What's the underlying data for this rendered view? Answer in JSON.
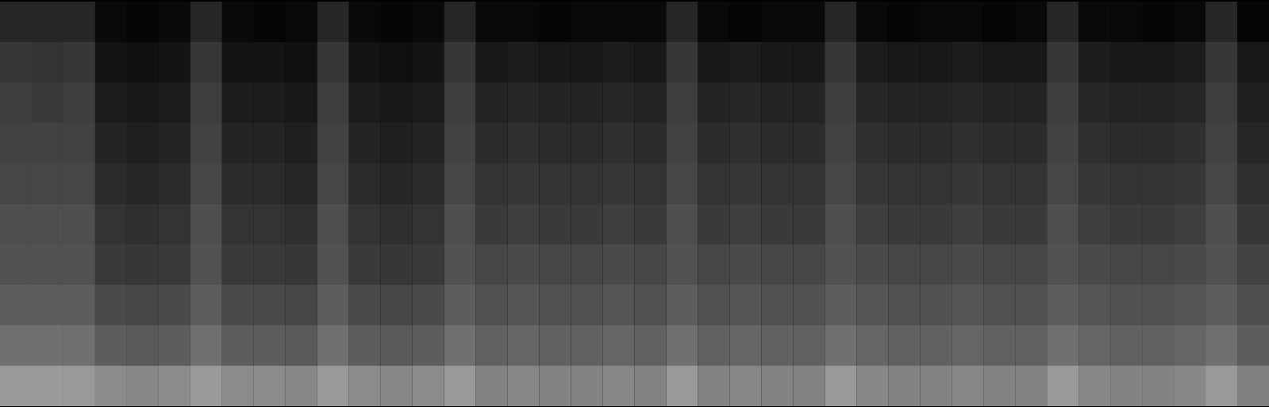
{
  "chart_data": {
    "type": "heatmap",
    "tick_labels": false,
    "cells": [
      [
        14,
        14,
        14,
        6,
        5,
        6,
        14,
        6,
        5,
        6,
        14,
        6,
        5,
        6,
        14,
        6,
        6,
        5,
        6,
        6,
        6,
        14,
        6,
        5,
        6,
        6,
        14,
        6,
        5,
        6,
        6,
        5,
        6,
        14,
        6,
        6,
        5,
        6,
        14,
        5
      ],
      [
        18,
        17,
        18,
        9,
        8,
        9,
        18,
        9,
        9,
        8,
        18,
        9,
        8,
        9,
        18,
        10,
        11,
        10,
        10,
        11,
        10,
        18,
        10,
        11,
        10,
        10,
        18,
        11,
        10,
        10,
        11,
        10,
        10,
        18,
        11,
        10,
        10,
        11,
        18,
        10
      ],
      [
        20,
        19,
        20,
        11,
        10,
        11,
        20,
        11,
        11,
        10,
        20,
        11,
        10,
        11,
        20,
        13,
        14,
        13,
        13,
        14,
        13,
        20,
        13,
        14,
        13,
        13,
        20,
        14,
        13,
        13,
        14,
        13,
        13,
        20,
        14,
        13,
        13,
        14,
        20,
        12
      ],
      [
        21,
        21,
        21,
        13,
        12,
        13,
        21,
        13,
        13,
        12,
        21,
        13,
        12,
        13,
        21,
        15,
        16,
        15,
        15,
        16,
        15,
        21,
        15,
        16,
        15,
        15,
        21,
        16,
        15,
        15,
        16,
        15,
        15,
        21,
        16,
        15,
        15,
        16,
        21,
        14
      ],
      [
        22,
        22,
        22,
        15,
        14,
        15,
        22,
        15,
        15,
        14,
        22,
        15,
        14,
        15,
        22,
        17,
        18,
        17,
        17,
        18,
        17,
        22,
        17,
        18,
        17,
        17,
        22,
        18,
        17,
        17,
        18,
        17,
        17,
        22,
        18,
        17,
        17,
        18,
        22,
        16
      ],
      [
        24,
        24,
        24,
        17,
        16,
        17,
        24,
        17,
        17,
        16,
        24,
        17,
        16,
        17,
        24,
        19,
        20,
        19,
        19,
        20,
        19,
        24,
        19,
        20,
        19,
        19,
        24,
        20,
        19,
        19,
        20,
        19,
        19,
        24,
        20,
        19,
        19,
        20,
        24,
        18
      ],
      [
        25,
        25,
        25,
        19,
        18,
        19,
        25,
        19,
        19,
        18,
        25,
        19,
        18,
        19,
        25,
        22,
        23,
        22,
        22,
        23,
        22,
        25,
        22,
        23,
        22,
        22,
        25,
        23,
        22,
        22,
        23,
        22,
        22,
        25,
        23,
        22,
        22,
        23,
        25,
        21
      ],
      [
        28,
        28,
        28,
        23,
        22,
        23,
        28,
        23,
        23,
        22,
        28,
        23,
        22,
        23,
        28,
        25,
        26,
        25,
        25,
        26,
        25,
        28,
        25,
        26,
        25,
        25,
        28,
        26,
        25,
        25,
        26,
        25,
        25,
        28,
        26,
        25,
        25,
        26,
        28,
        24
      ],
      [
        33,
        33,
        33,
        28,
        27,
        28,
        33,
        28,
        28,
        27,
        33,
        28,
        27,
        28,
        33,
        29,
        30,
        29,
        29,
        30,
        29,
        33,
        29,
        30,
        29,
        29,
        33,
        30,
        29,
        29,
        30,
        29,
        29,
        33,
        30,
        29,
        29,
        30,
        33,
        28
      ],
      [
        44,
        44,
        44,
        40,
        39,
        40,
        44,
        40,
        40,
        39,
        44,
        40,
        39,
        40,
        44,
        38,
        39,
        38,
        38,
        39,
        38,
        44,
        38,
        39,
        38,
        38,
        44,
        39,
        38,
        38,
        39,
        38,
        38,
        44,
        39,
        38,
        38,
        39,
        44,
        37
      ]
    ]
  }
}
